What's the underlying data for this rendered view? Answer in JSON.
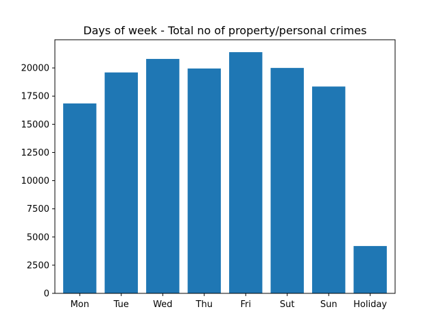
{
  "chart_data": {
    "type": "bar",
    "title": "Days of week  - Total no of property/personal crimes",
    "xlabel": "",
    "ylabel": "",
    "categories": [
      "Mon",
      "Tue",
      "Wed",
      "Thu",
      "Fri",
      "Sut",
      "Sun",
      "Holiday"
    ],
    "values": [
      16850,
      19600,
      20800,
      19950,
      21400,
      20000,
      18350,
      4200
    ],
    "ylim": [
      0,
      22500
    ],
    "yticks": [
      0,
      2500,
      5000,
      7500,
      10000,
      12500,
      15000,
      17500,
      20000
    ],
    "bar_color": "#1f77b4",
    "grid": false,
    "legend": "none"
  }
}
